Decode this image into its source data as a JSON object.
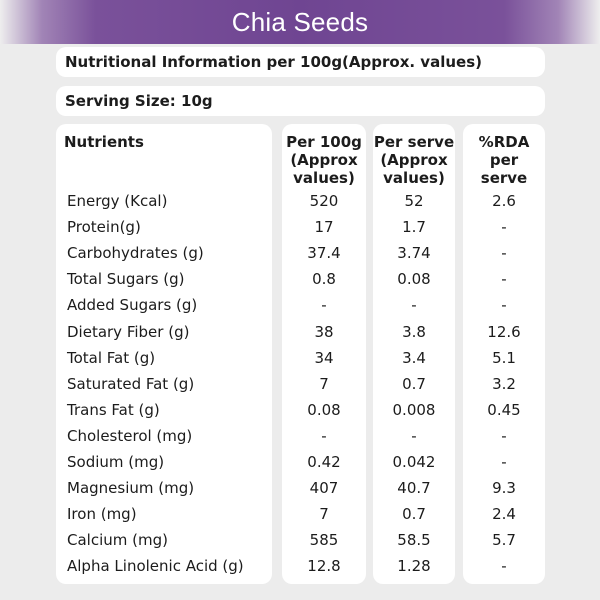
{
  "title": "Chia Seeds",
  "info_line": "Nutritional Information per 100g(Approx. values)",
  "serving_line": "Serving Size:  10g",
  "headers": {
    "nutrients": "Nutrients",
    "per100": "Per 100g\n(Approx\nvalues)",
    "perserve": "Per serve\n(Approx\nvalues)",
    "rda": "%RDA\nper\nserve"
  },
  "rows": [
    {
      "name": "Energy (Kcal)",
      "per100": "520",
      "perserve": "52",
      "rda": "2.6"
    },
    {
      "name": "Protein(g)",
      "per100": "17",
      "perserve": "1.7",
      "rda": "-"
    },
    {
      "name": "Carbohydrates (g)",
      "per100": "37.4",
      "perserve": "3.74",
      "rda": "-"
    },
    {
      "name": "Total Sugars (g)",
      "per100": "0.8",
      "perserve": "0.08",
      "rda": "-"
    },
    {
      "name": "Added Sugars (g)",
      "per100": "-",
      "perserve": "-",
      "rda": "-"
    },
    {
      "name": "Dietary Fiber (g)",
      "per100": "38",
      "perserve": "3.8",
      "rda": "12.6"
    },
    {
      "name": "Total Fat (g)",
      "per100": "34",
      "perserve": "3.4",
      "rda": "5.1"
    },
    {
      "name": "Saturated Fat (g)",
      "per100": "7",
      "perserve": "0.7",
      "rda": "3.2"
    },
    {
      "name": "Trans Fat (g)",
      "per100": "0.08",
      "perserve": "0.008",
      "rda": "0.45"
    },
    {
      "name": "Cholesterol (mg)",
      "per100": "-",
      "perserve": "-",
      "rda": "-"
    },
    {
      "name": "Sodium (mg)",
      "per100": "0.42",
      "perserve": "0.042",
      "rda": "-"
    },
    {
      "name": "Magnesium (mg)",
      "per100": "407",
      "perserve": "40.7",
      "rda": "9.3"
    },
    {
      "name": "Iron (mg)",
      "per100": "7",
      "perserve": "0.7",
      "rda": "2.4"
    },
    {
      "name": "Calcium (mg)",
      "per100": "585",
      "perserve": "58.5",
      "rda": "5.7"
    },
    {
      "name": "Alpha Linolenic Acid (g)",
      "per100": "12.8",
      "perserve": "1.28",
      "rda": "-"
    }
  ],
  "colors": {
    "banner": "#6f4592",
    "background": "#ececec",
    "panel": "#ffffff"
  }
}
